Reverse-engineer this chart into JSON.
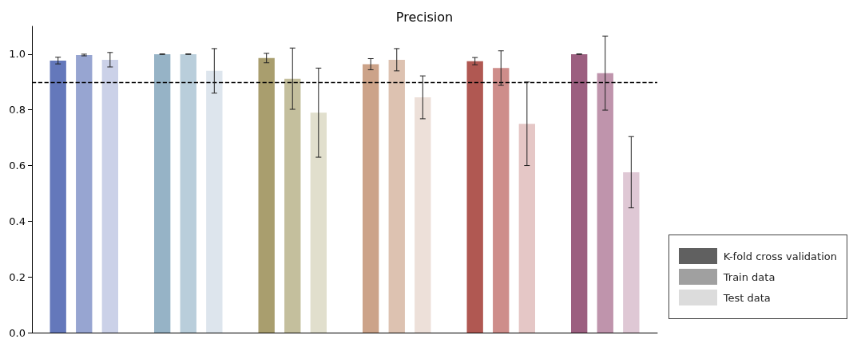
{
  "chart_data": {
    "type": "bar",
    "title": "Precision",
    "categories": [
      null,
      null,
      null,
      null,
      null,
      null
    ],
    "series": [
      {
        "name": "K-fold cross validation",
        "color": "#606060",
        "colors": [
          "#6478bb",
          "#96b3c6",
          "#a99e6e",
          "#cca389",
          "#b05852",
          "#9c5f80"
        ],
        "values": [
          0.977,
          1.0,
          0.986,
          0.964,
          0.975,
          1.0
        ],
        "errors": [
          0.012,
          0.001,
          0.017,
          0.02,
          0.013,
          0.001
        ]
      },
      {
        "name": "Train data",
        "color": "#a0a0a0",
        "colors": [
          "#97a5d1",
          "#b9cedb",
          "#c4bf9d",
          "#ddc2b1",
          "#ce8d8a",
          "#bf94ac"
        ],
        "values": [
          0.997,
          1.0,
          0.912,
          0.98,
          0.95,
          0.932
        ],
        "errors": [
          0.003,
          0.001,
          0.11,
          0.04,
          0.062,
          0.133
        ]
      },
      {
        "name": "Test data",
        "color": "#dcdcdc",
        "colors": [
          "#cbd1e8",
          "#dde5ed",
          "#e1dfcd",
          "#ede0d9",
          "#e5c7c6",
          "#dfc8d5"
        ],
        "values": [
          0.98,
          0.94,
          0.79,
          0.845,
          0.75,
          0.576
        ],
        "errors": [
          0.026,
          0.08,
          0.16,
          0.077,
          0.15,
          0.128
        ]
      }
    ],
    "ylim": [
      0,
      1.1
    ],
    "yticks": [
      {
        "value": 0,
        "label": "0.0"
      },
      {
        "value": 0.2,
        "label": "0.2"
      },
      {
        "value": 0.4,
        "label": "0.4"
      },
      {
        "value": 0.6,
        "label": "0.6"
      },
      {
        "value": 0.8,
        "label": "0.8"
      },
      {
        "value": 1,
        "label": "1.0"
      }
    ],
    "ref_lines": [
      {
        "axis": "y",
        "value": 0.9,
        "label": null,
        "color": "#000000",
        "line_style": "dashed"
      }
    ],
    "legend": "bottom right",
    "grid": false
  }
}
